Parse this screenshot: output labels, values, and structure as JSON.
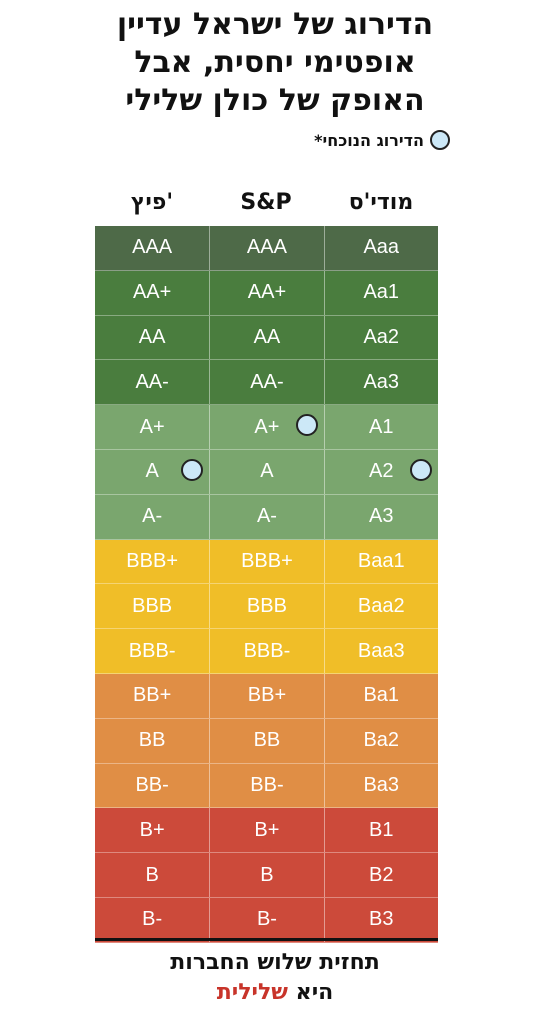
{
  "title": {
    "line1": "הדירוג של ישראל עדיין",
    "line2": "אופטימי יחסית, אבל",
    "line3": "האופק של כולן שלילי"
  },
  "legend": {
    "label": "הדירוג הנוכחי*",
    "marker_color": "#cce8f7"
  },
  "footer": {
    "line1": "תחזית שלוש החברות",
    "line2_prefix": "היא",
    "line2_highlight": "שלילית",
    "highlight_color": "#c8342a"
  },
  "chart_data": {
    "type": "table",
    "columns": [
      "פיץ'",
      "S&P",
      "מודי'ס"
    ],
    "rows": [
      {
        "fitch": "AAA",
        "sp": "AAA",
        "moodys": "Aaa",
        "color": "#4e6a48"
      },
      {
        "fitch": "AA+",
        "sp": "AA+",
        "moodys": "Aa1",
        "color": "#4a7d3e"
      },
      {
        "fitch": "AA",
        "sp": "AA",
        "moodys": "Aa2",
        "color": "#4a7d3e"
      },
      {
        "fitch": "AA-",
        "sp": "AA-",
        "moodys": "Aa3",
        "color": "#4a7d3e"
      },
      {
        "fitch": "A+",
        "sp": "A+",
        "moodys": "A1",
        "color": "#7aa66e"
      },
      {
        "fitch": "A",
        "sp": "A",
        "moodys": "A2",
        "color": "#7aa66e"
      },
      {
        "fitch": "A-",
        "sp": "A-",
        "moodys": "A3",
        "color": "#7aa66e"
      },
      {
        "fitch": "BBB+",
        "sp": "BBB+",
        "moodys": "Baa1",
        "color": "#f0be28"
      },
      {
        "fitch": "BBB",
        "sp": "BBB",
        "moodys": "Baa2",
        "color": "#f0be28"
      },
      {
        "fitch": "BBB-",
        "sp": "BBB-",
        "moodys": "Baa3",
        "color": "#f0be28"
      },
      {
        "fitch": "BB+",
        "sp": "BB+",
        "moodys": "Ba1",
        "color": "#e08e45"
      },
      {
        "fitch": "BB",
        "sp": "BB",
        "moodys": "Ba2",
        "color": "#e08e45"
      },
      {
        "fitch": "BB-",
        "sp": "BB-",
        "moodys": "Ba3",
        "color": "#e08e45"
      },
      {
        "fitch": "B+",
        "sp": "B+",
        "moodys": "B1",
        "color": "#cc4a3a"
      },
      {
        "fitch": "B",
        "sp": "B",
        "moodys": "B2",
        "color": "#cc4a3a"
      },
      {
        "fitch": "B-",
        "sp": "B-",
        "moodys": "B3",
        "color": "#cc4a3a"
      }
    ],
    "current_rating": {
      "fitch": "A",
      "sp": "A+",
      "moodys": "A2"
    }
  }
}
